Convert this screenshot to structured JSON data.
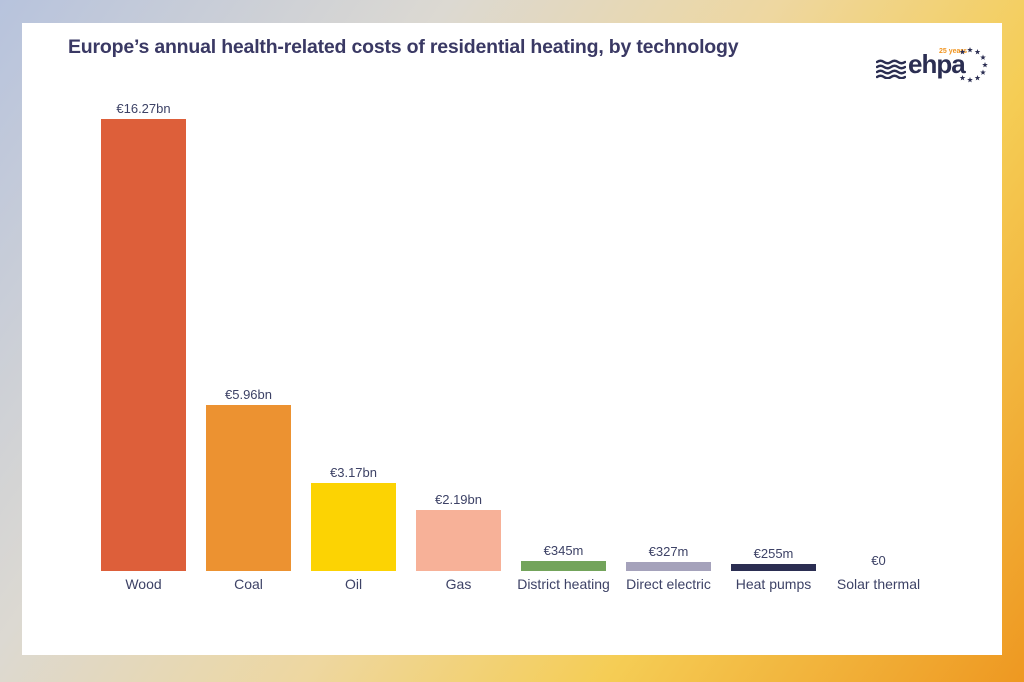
{
  "header": {
    "title": "Europe’s annual health-related costs of residential heating, by technology"
  },
  "logo": {
    "text": "ehpa",
    "badge": "25 years"
  },
  "chart_data": {
    "type": "bar",
    "title": "Europe’s annual health-related costs of residential heating, by technology",
    "categories": [
      "Wood",
      "Coal",
      "Oil",
      "Gas",
      "District heating",
      "Direct electric",
      "Heat pumps",
      "Solar thermal"
    ],
    "values_eur_bn": [
      16.27,
      5.96,
      3.17,
      2.19,
      0.345,
      0.327,
      0.255,
      0
    ],
    "value_labels": [
      "€16.27bn",
      "€5.96bn",
      "€3.17bn",
      "€2.19bn",
      "€345m",
      "€327m",
      "€255m",
      "€0"
    ],
    "bar_colors": [
      "#dd5f3a",
      "#ec9231",
      "#fcd303",
      "#f7b198",
      "#73a45b",
      "#a5a2bb",
      "#2b2e52",
      "transparent"
    ],
    "xlabel": "",
    "ylabel": "",
    "unit": "EUR",
    "ylim": [
      0,
      16.5
    ],
    "grid": false,
    "legend": false
  },
  "colors": {
    "title_text": "#3a3964",
    "label_text": "#3d4266",
    "card_bg": "#ffffff",
    "logo_navy": "#2b2e52",
    "logo_accent": "#f0941f",
    "border_gradient": [
      "#b7c3dd",
      "#dcd9d2",
      "#f5cd55",
      "#ee9821"
    ]
  }
}
